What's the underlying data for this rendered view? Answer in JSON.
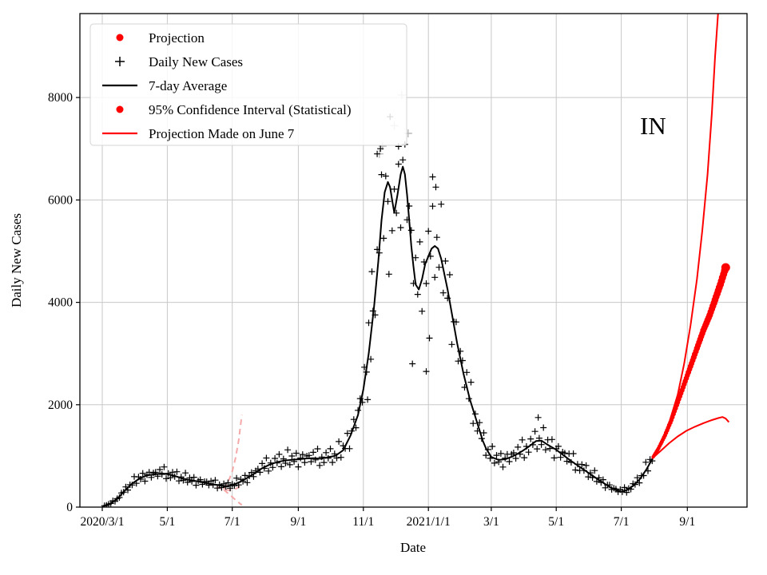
{
  "chart_data": {
    "type": "scatter",
    "title": "",
    "xlabel": "Date",
    "ylabel": "Daily New Cases",
    "x_unit": "days_since_2020-03-01",
    "xlim": [
      -21,
      605
    ],
    "ylim": [
      0,
      9640
    ],
    "grid": true,
    "y_ticks": [
      0,
      2000,
      4000,
      6000,
      8000
    ],
    "x_ticks": [
      {
        "day": 0,
        "label": "2020/3/1"
      },
      {
        "day": 61,
        "label": "5/1"
      },
      {
        "day": 122,
        "label": "7/1"
      },
      {
        "day": 184,
        "label": "9/1"
      },
      {
        "day": 245,
        "label": "11/1"
      },
      {
        "day": 306,
        "label": "2021/1/1"
      },
      {
        "day": 365,
        "label": "3/1"
      },
      {
        "day": 426,
        "label": "5/1"
      },
      {
        "day": 487,
        "label": "7/1"
      },
      {
        "day": 549,
        "label": "9/1"
      }
    ],
    "annotation": {
      "text": "IN",
      "day": 508,
      "value": 7600
    },
    "colors": {
      "projection": "#ff0000",
      "daily": "#000000",
      "avg": "#000000",
      "old_projection": "#f5a9a9",
      "masked": "#b8b8b8",
      "grid": "#c8c8c8",
      "spine": "#000000"
    },
    "legend": {
      "position": "upper left",
      "items": [
        {
          "marker": "dot",
          "color": "#ff0000",
          "label": "Projection"
        },
        {
          "marker": "plus",
          "color": "#000000",
          "label": "Daily New Cases"
        },
        {
          "marker": "line",
          "color": "#000000",
          "label": "7-day Average"
        },
        {
          "marker": "dot",
          "color": "#ff0000",
          "label": "95% Confidence Interval (Statistical)"
        },
        {
          "marker": "line",
          "color": "#ff0000",
          "label": "Projection Made on June 7"
        }
      ]
    },
    "series": {
      "avg7": {
        "name": "7-day Average",
        "anchors": [
          [
            0,
            10
          ],
          [
            7,
            60
          ],
          [
            14,
            160
          ],
          [
            21,
            320
          ],
          [
            28,
            460
          ],
          [
            35,
            560
          ],
          [
            42,
            620
          ],
          [
            49,
            640
          ],
          [
            56,
            660
          ],
          [
            61,
            645
          ],
          [
            68,
            610
          ],
          [
            75,
            560
          ],
          [
            82,
            530
          ],
          [
            89,
            505
          ],
          [
            96,
            475
          ],
          [
            103,
            450
          ],
          [
            110,
            425
          ],
          [
            117,
            405
          ],
          [
            122,
            430
          ],
          [
            129,
            490
          ],
          [
            136,
            570
          ],
          [
            143,
            660
          ],
          [
            150,
            760
          ],
          [
            157,
            830
          ],
          [
            164,
            880
          ],
          [
            171,
            910
          ],
          [
            178,
            925
          ],
          [
            184,
            935
          ],
          [
            191,
            950
          ],
          [
            198,
            955
          ],
          [
            205,
            945
          ],
          [
            212,
            975
          ],
          [
            219,
            1005
          ],
          [
            226,
            1110
          ],
          [
            233,
            1400
          ],
          [
            240,
            1800
          ],
          [
            245,
            2300
          ],
          [
            250,
            3000
          ],
          [
            255,
            3900
          ],
          [
            259,
            4800
          ],
          [
            262,
            5600
          ],
          [
            265,
            6150
          ],
          [
            268,
            6350
          ],
          [
            270,
            6250
          ],
          [
            272,
            6000
          ],
          [
            274,
            5750
          ],
          [
            277,
            6100
          ],
          [
            280,
            6500
          ],
          [
            282,
            6650
          ],
          [
            284,
            6500
          ],
          [
            286,
            6100
          ],
          [
            288,
            5600
          ],
          [
            290,
            5100
          ],
          [
            292,
            4700
          ],
          [
            294,
            4350
          ],
          [
            297,
            4250
          ],
          [
            300,
            4450
          ],
          [
            303,
            4750
          ],
          [
            306,
            4900
          ],
          [
            309,
            5050
          ],
          [
            312,
            5100
          ],
          [
            315,
            5050
          ],
          [
            318,
            4850
          ],
          [
            321,
            4550
          ],
          [
            324,
            4250
          ],
          [
            327,
            3900
          ],
          [
            330,
            3550
          ],
          [
            333,
            3200
          ],
          [
            336,
            2900
          ],
          [
            339,
            2600
          ],
          [
            342,
            2350
          ],
          [
            345,
            2100
          ],
          [
            348,
            1900
          ],
          [
            351,
            1700
          ],
          [
            354,
            1500
          ],
          [
            357,
            1300
          ],
          [
            360,
            1150
          ],
          [
            365,
            980
          ],
          [
            372,
            920
          ],
          [
            379,
            940
          ],
          [
            386,
            1000
          ],
          [
            393,
            1080
          ],
          [
            400,
            1180
          ],
          [
            407,
            1290
          ],
          [
            412,
            1300
          ],
          [
            417,
            1230
          ],
          [
            426,
            1120
          ],
          [
            433,
            1010
          ],
          [
            440,
            900
          ],
          [
            447,
            800
          ],
          [
            454,
            700
          ],
          [
            461,
            600
          ],
          [
            468,
            500
          ],
          [
            475,
            410
          ],
          [
            481,
            340
          ],
          [
            487,
            300
          ],
          [
            493,
            340
          ],
          [
            499,
            430
          ],
          [
            505,
            560
          ],
          [
            511,
            750
          ],
          [
            515,
            900
          ],
          [
            518,
            1020
          ]
        ]
      },
      "daily": {
        "name": "Daily New Cases",
        "sample_step": 2,
        "day_range": [
          2,
          516
        ],
        "noise": [
          1.06,
          0.93,
          1.12,
          0.97,
          1.2,
          0.86,
          1.03,
          0.91,
          1.1,
          0.98,
          1.16,
          0.88,
          1.04,
          0.94,
          1.22,
          0.9,
          1.08,
          0.96,
          1.13,
          0.84,
          1.02,
          1.09,
          0.92,
          1.05
        ],
        "outliers": [
          [
            249,
            2100
          ],
          [
            253,
            4600
          ],
          [
            258,
            6900
          ],
          [
            261,
            7000
          ],
          [
            269,
            4550
          ],
          [
            278,
            6700
          ],
          [
            291,
            2800
          ],
          [
            304,
            2650
          ],
          [
            307,
            3300
          ],
          [
            310,
            6450
          ],
          [
            313,
            6250
          ],
          [
            409,
            1750
          ]
        ],
        "masked_outliers": [
          [
            260,
            6900
          ],
          [
            263,
            7050
          ],
          [
            274,
            7450
          ],
          [
            281,
            8050
          ],
          [
            287,
            7300
          ]
        ]
      },
      "projection": {
        "name": "Projection",
        "dot_day_step": 1,
        "anchors": [
          [
            516,
            950
          ],
          [
            522,
            1150
          ],
          [
            528,
            1400
          ],
          [
            534,
            1700
          ],
          [
            540,
            2050
          ],
          [
            546,
            2400
          ],
          [
            552,
            2750
          ],
          [
            558,
            3100
          ],
          [
            564,
            3450
          ],
          [
            570,
            3750
          ],
          [
            575,
            4050
          ],
          [
            580,
            4350
          ],
          [
            583,
            4550
          ],
          [
            585,
            4680
          ]
        ],
        "end_dot": [
          585,
          4680
        ]
      },
      "ci_upper": {
        "name": "95% Confidence Interval upper bound",
        "anchors": [
          [
            516,
            950
          ],
          [
            524,
            1250
          ],
          [
            532,
            1650
          ],
          [
            540,
            2200
          ],
          [
            546,
            2800
          ],
          [
            552,
            3550
          ],
          [
            558,
            4450
          ],
          [
            563,
            5400
          ],
          [
            568,
            6500
          ],
          [
            572,
            7700
          ],
          [
            575,
            8800
          ],
          [
            578,
            9700
          ]
        ]
      },
      "ci_lower": {
        "name": "95% Confidence Interval lower bound",
        "anchors": [
          [
            516,
            950
          ],
          [
            524,
            1100
          ],
          [
            532,
            1250
          ],
          [
            540,
            1380
          ],
          [
            548,
            1490
          ],
          [
            556,
            1570
          ],
          [
            564,
            1640
          ],
          [
            572,
            1700
          ],
          [
            578,
            1740
          ],
          [
            582,
            1760
          ],
          [
            585,
            1730
          ],
          [
            588,
            1660
          ]
        ]
      },
      "june7_projection": {
        "name": "Projection Made on June 7",
        "segments": [
          [
            [
              99,
              470
            ],
            [
              104,
              420
            ],
            [
              109,
              380
            ],
            [
              114,
              345
            ],
            [
              119,
              330
            ],
            [
              124,
              345
            ],
            [
              128,
              390
            ],
            [
              131,
              440
            ]
          ],
          [
            [
              114,
              350
            ],
            [
              118,
              480
            ],
            [
              122,
              700
            ],
            [
              125,
              950
            ],
            [
              128,
              1300
            ],
            [
              131,
              1800
            ]
          ],
          [
            [
              114,
              340
            ],
            [
              118,
              270
            ],
            [
              122,
              200
            ],
            [
              125,
              140
            ],
            [
              128,
              90
            ],
            [
              131,
              40
            ]
          ]
        ]
      }
    }
  }
}
